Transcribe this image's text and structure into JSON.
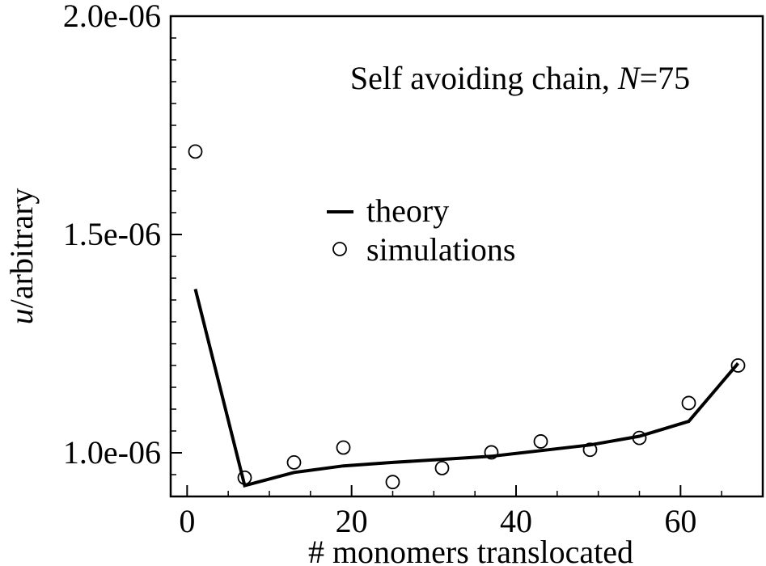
{
  "chart_data": {
    "type": "line",
    "annotation": {
      "prefix": "Self avoiding chain, ",
      "var": "N",
      "suffix": "=75"
    },
    "xlabel": "# monomers translocated",
    "ylabel": {
      "var": "u",
      "suffix": "/arbitrary"
    },
    "xlim": [
      -2,
      70
    ],
    "ylim": [
      9e-07,
      2e-06
    ],
    "x_ticks": [
      0,
      20,
      40,
      60
    ],
    "x_tick_labels": [
      "0",
      "20",
      "40",
      "60"
    ],
    "y_ticks": [
      1e-06,
      1.5e-06,
      2e-06
    ],
    "y_tick_labels": [
      "1.0e-06",
      "1.5e-06",
      "2.0e-06"
    ],
    "legend": {
      "position": "middle-left"
    },
    "series": [
      {
        "name": "theory",
        "style": "line",
        "color": "#000000",
        "x": [
          1,
          7,
          13,
          19,
          25,
          31,
          37,
          43,
          49,
          55,
          61,
          67
        ],
        "y": [
          1.375e-06,
          9.25e-07,
          9.55e-07,
          9.7e-07,
          9.78e-07,
          9.85e-07,
          9.92e-07,
          1.005e-06,
          1.018e-06,
          1.038e-06,
          1.072e-06,
          1.205e-06
        ]
      },
      {
        "name": "simulations",
        "style": "open-circle",
        "color": "#000000",
        "x": [
          1,
          7,
          13,
          19,
          25,
          31,
          37,
          43,
          49,
          55,
          61,
          67
        ],
        "y": [
          1.69e-06,
          9.43e-07,
          9.78e-07,
          1.012e-06,
          9.33e-07,
          9.65e-07,
          1.001e-06,
          1.026e-06,
          1.007e-06,
          1.034e-06,
          1.114e-06,
          1.2e-06
        ]
      }
    ]
  }
}
